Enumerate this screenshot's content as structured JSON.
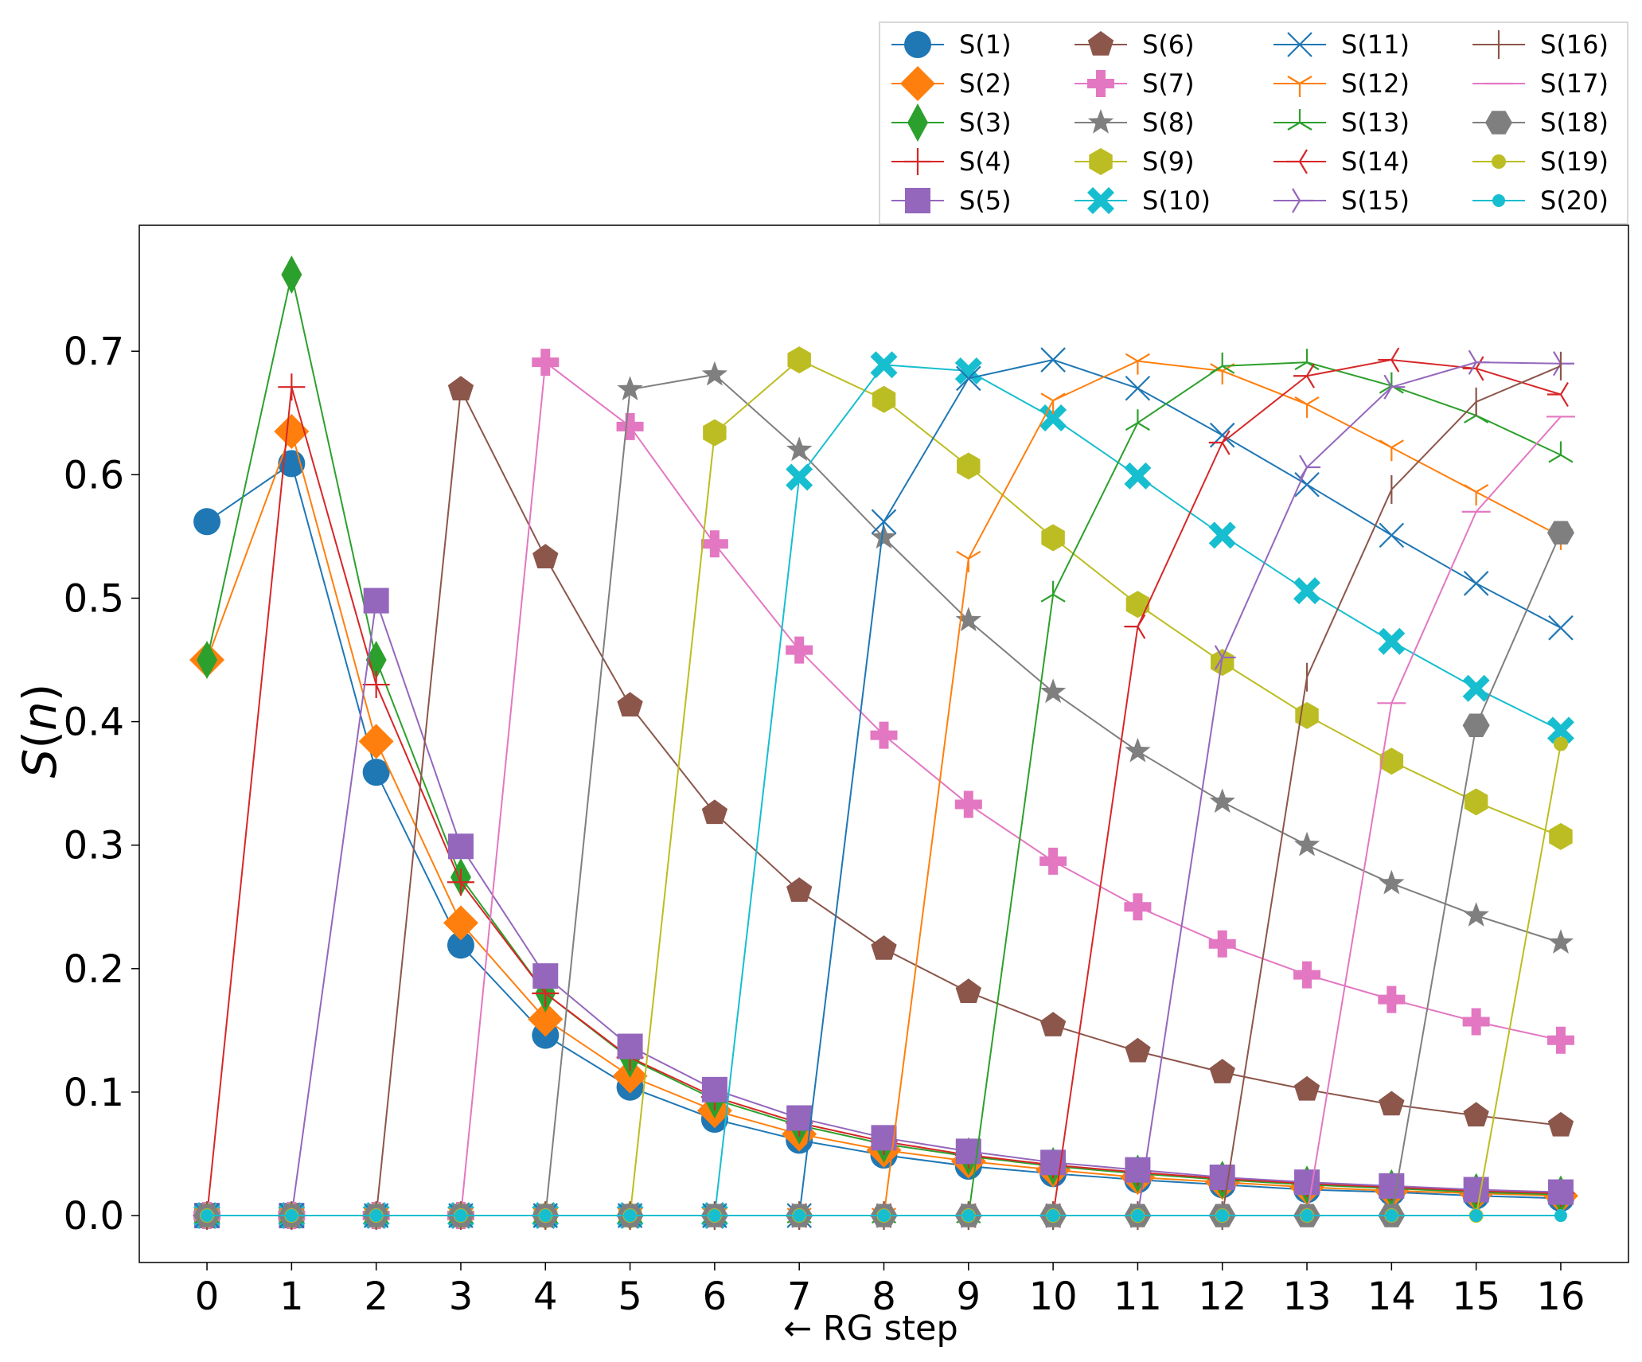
{
  "chart_data": {
    "type": "line",
    "xlabel": "← RG step",
    "ylabel": "S(n)",
    "ylabel_parts": {
      "symbol": "S",
      "open": "(",
      "arg": "n",
      "close": ")"
    },
    "xlim": [
      -0.8,
      16.8
    ],
    "ylim": [
      -0.038,
      0.802
    ],
    "x_ticks": [
      0,
      1,
      2,
      3,
      4,
      5,
      6,
      7,
      8,
      9,
      10,
      11,
      12,
      13,
      14,
      15,
      16
    ],
    "x_tick_labels": [
      "0",
      "1",
      "2",
      "3",
      "4",
      "5",
      "6",
      "7",
      "8",
      "9",
      "10",
      "11",
      "12",
      "13",
      "14",
      "15",
      "16"
    ],
    "y_ticks": [
      0.0,
      0.1,
      0.2,
      0.3,
      0.4,
      0.5,
      0.6,
      0.7
    ],
    "y_tick_labels": [
      "0.0",
      "0.1",
      "0.2",
      "0.3",
      "0.4",
      "0.5",
      "0.6",
      "0.7"
    ],
    "grid": false,
    "legend": {
      "placement": "upper-right, above plot",
      "columns": 4
    },
    "x": [
      0,
      1,
      2,
      3,
      4,
      5,
      6,
      7,
      8,
      9,
      10,
      11,
      12,
      13,
      14,
      15,
      16
    ],
    "series": [
      {
        "name": "S(1)",
        "color": "#1f77b4",
        "marker": "circle",
        "values": [
          0.562,
          0.609,
          0.359,
          0.219,
          0.146,
          0.104,
          0.078,
          0.061,
          0.049,
          0.04,
          0.034,
          0.029,
          0.025,
          0.021,
          0.019,
          0.016,
          0.014
        ]
      },
      {
        "name": "S(2)",
        "color": "#ff7f0e",
        "marker": "diamond",
        "values": [
          0.45,
          0.635,
          0.384,
          0.237,
          0.159,
          0.113,
          0.085,
          0.066,
          0.053,
          0.044,
          0.037,
          0.031,
          0.027,
          0.023,
          0.02,
          0.018,
          0.016
        ]
      },
      {
        "name": "S(3)",
        "color": "#2ca02c",
        "marker": "thin_diamond",
        "values": [
          0.45,
          0.762,
          0.45,
          0.274,
          0.18,
          0.127,
          0.094,
          0.073,
          0.058,
          0.048,
          0.04,
          0.034,
          0.029,
          0.025,
          0.022,
          0.019,
          0.017
        ]
      },
      {
        "name": "S(4)",
        "color": "#d62728",
        "marker": "plus",
        "values": [
          0.0,
          0.671,
          0.43,
          0.27,
          0.18,
          0.128,
          0.096,
          0.075,
          0.06,
          0.049,
          0.041,
          0.035,
          0.03,
          0.026,
          0.023,
          0.02,
          0.018
        ]
      },
      {
        "name": "S(5)",
        "color": "#9467bd",
        "marker": "square",
        "values": [
          0.0,
          0.0,
          0.498,
          0.299,
          0.194,
          0.137,
          0.102,
          0.079,
          0.063,
          0.052,
          0.043,
          0.037,
          0.031,
          0.027,
          0.024,
          0.021,
          0.019
        ]
      },
      {
        "name": "S(6)",
        "color": "#8c564b",
        "marker": "pentagon",
        "values": [
          0.0,
          0.0,
          0.0,
          0.669,
          0.533,
          0.413,
          0.326,
          0.263,
          0.216,
          0.181,
          0.154,
          0.133,
          0.116,
          0.102,
          0.09,
          0.081,
          0.073
        ]
      },
      {
        "name": "S(7)",
        "color": "#e377c2",
        "marker": "P",
        "values": [
          0.0,
          0.0,
          0.0,
          0.0,
          0.691,
          0.639,
          0.544,
          0.458,
          0.389,
          0.333,
          0.287,
          0.25,
          0.22,
          0.195,
          0.175,
          0.157,
          0.142
        ]
      },
      {
        "name": "S(8)",
        "color": "#7f7f7f",
        "marker": "star",
        "values": [
          0.0,
          0.0,
          0.0,
          0.0,
          0.0,
          0.669,
          0.681,
          0.62,
          0.549,
          0.482,
          0.424,
          0.376,
          0.335,
          0.3,
          0.269,
          0.243,
          0.221
        ]
      },
      {
        "name": "S(9)",
        "color": "#bcbd22",
        "marker": "hexagon",
        "values": [
          0.0,
          0.0,
          0.0,
          0.0,
          0.0,
          0.0,
          0.634,
          0.693,
          0.661,
          0.607,
          0.549,
          0.495,
          0.448,
          0.405,
          0.368,
          0.335,
          0.307
        ]
      },
      {
        "name": "S(10)",
        "color": "#17becf",
        "marker": "X",
        "values": [
          0.0,
          0.0,
          0.0,
          0.0,
          0.0,
          0.0,
          0.0,
          0.598,
          0.689,
          0.684,
          0.646,
          0.599,
          0.551,
          0.506,
          0.465,
          0.427,
          0.393
        ]
      },
      {
        "name": "S(11)",
        "color": "#1f77b4",
        "marker": "x",
        "values": [
          0.0,
          0.0,
          0.0,
          0.0,
          0.0,
          0.0,
          0.0,
          0.0,
          0.562,
          0.678,
          0.693,
          0.67,
          0.632,
          0.592,
          0.551,
          0.512,
          0.476
        ]
      },
      {
        "name": "S(12)",
        "color": "#ff7f0e",
        "marker": "tri_down",
        "values": [
          0.0,
          0.0,
          0.0,
          0.0,
          0.0,
          0.0,
          0.0,
          0.0,
          0.0,
          0.532,
          0.66,
          0.692,
          0.684,
          0.657,
          0.622,
          0.586,
          0.55
        ]
      },
      {
        "name": "S(13)",
        "color": "#2ca02c",
        "marker": "tri_up",
        "values": [
          0.0,
          0.0,
          0.0,
          0.0,
          0.0,
          0.0,
          0.0,
          0.0,
          0.0,
          0.0,
          0.503,
          0.642,
          0.688,
          0.691,
          0.672,
          0.648,
          0.616
        ]
      },
      {
        "name": "S(14)",
        "color": "#d62728",
        "marker": "tri_left",
        "values": [
          0.0,
          0.0,
          0.0,
          0.0,
          0.0,
          0.0,
          0.0,
          0.0,
          0.0,
          0.0,
          0.0,
          0.477,
          0.626,
          0.68,
          0.693,
          0.686,
          0.665
        ]
      },
      {
        "name": "S(15)",
        "color": "#9467bd",
        "marker": "tri_right",
        "values": [
          0.0,
          0.0,
          0.0,
          0.0,
          0.0,
          0.0,
          0.0,
          0.0,
          0.0,
          0.0,
          0.0,
          0.0,
          0.452,
          0.606,
          0.671,
          0.691,
          0.69
        ]
      },
      {
        "name": "S(16)",
        "color": "#8c564b",
        "marker": "vline",
        "values": [
          0.0,
          0.0,
          0.0,
          0.0,
          0.0,
          0.0,
          0.0,
          0.0,
          0.0,
          0.0,
          0.0,
          0.0,
          0.0,
          0.436,
          0.588,
          0.659,
          0.688
        ]
      },
      {
        "name": "S(17)",
        "color": "#e377c2",
        "marker": "hline",
        "values": [
          0.0,
          0.0,
          0.0,
          0.0,
          0.0,
          0.0,
          0.0,
          0.0,
          0.0,
          0.0,
          0.0,
          0.0,
          0.0,
          0.0,
          0.415,
          0.57,
          0.647
        ]
      },
      {
        "name": "S(18)",
        "color": "#7f7f7f",
        "marker": "hexagon2",
        "values": [
          0.0,
          0.0,
          0.0,
          0.0,
          0.0,
          0.0,
          0.0,
          0.0,
          0.0,
          0.0,
          0.0,
          0.0,
          0.0,
          0.0,
          0.0,
          0.397,
          0.553
        ]
      },
      {
        "name": "S(19)",
        "color": "#bcbd22",
        "marker": "dot",
        "values": [
          0.0,
          0.0,
          0.0,
          0.0,
          0.0,
          0.0,
          0.0,
          0.0,
          0.0,
          0.0,
          0.0,
          0.0,
          0.0,
          0.0,
          0.0,
          0.0,
          0.382
        ]
      },
      {
        "name": "S(20)",
        "color": "#17becf",
        "marker": "small_dot",
        "values": [
          0.0,
          0.0,
          0.0,
          0.0,
          0.0,
          0.0,
          0.0,
          0.0,
          0.0,
          0.0,
          0.0,
          0.0,
          0.0,
          0.0,
          0.0,
          0.0,
          0.0
        ]
      }
    ]
  }
}
